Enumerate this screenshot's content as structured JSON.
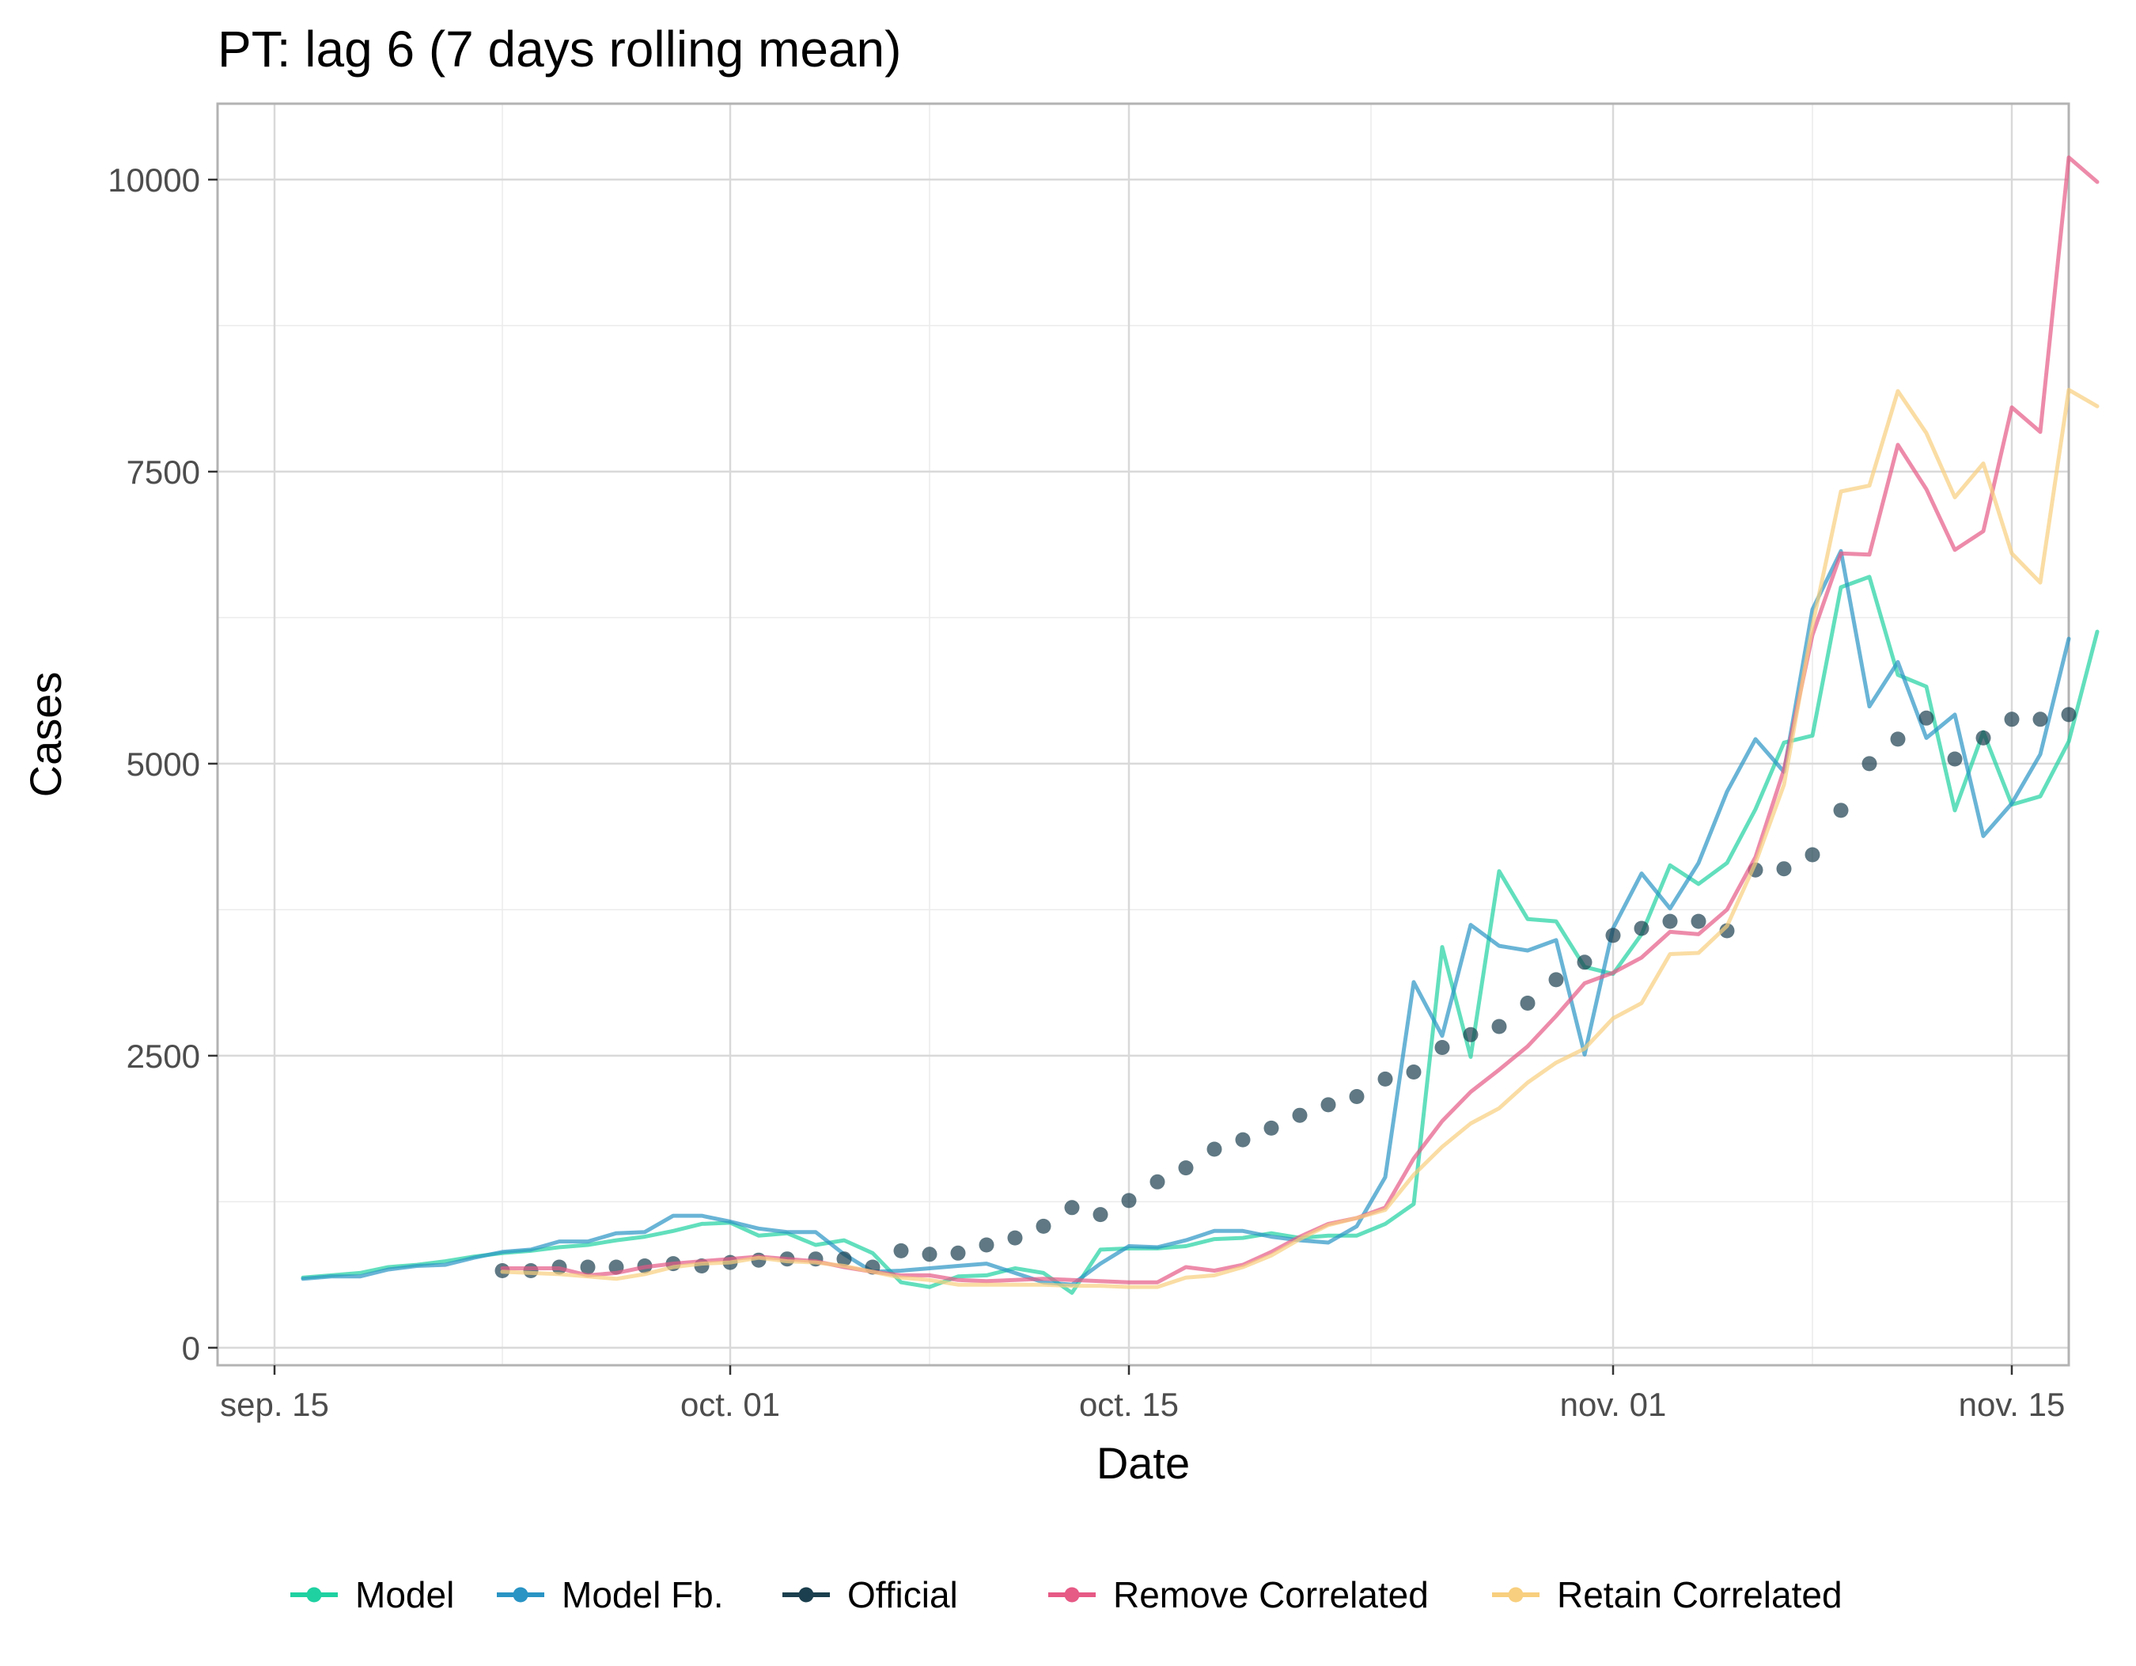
{
  "chart_data": {
    "type": "line",
    "title": "PT: lag 6 (7 days rolling mean)",
    "xlabel": "Date",
    "ylabel": "Cases",
    "x_start": "2020-09-16",
    "x_end": "2020-11-16",
    "xlim": [
      "2020-09-13",
      "2020-11-17"
    ],
    "ylim": [
      -150,
      10650
    ],
    "x_ticks": [
      {
        "date": "2020-09-15",
        "label": "sep. 15"
      },
      {
        "date": "2020-10-01",
        "label": "oct. 01"
      },
      {
        "date": "2020-10-15",
        "label": "oct. 15"
      },
      {
        "date": "2020-11-01",
        "label": "nov. 01"
      },
      {
        "date": "2020-11-15",
        "label": "nov. 15"
      }
    ],
    "y_ticks": [
      0,
      2500,
      5000,
      7500,
      10000
    ],
    "grid": true,
    "legend_position": "bottom",
    "series": [
      {
        "name": "Model",
        "color": "#1fd1a1",
        "style": "line",
        "values": [
          600,
          620,
          640,
          690,
          710,
          740,
          780,
          810,
          830,
          860,
          880,
          920,
          950,
          1000,
          1060,
          1070,
          960,
          980,
          880,
          920,
          810,
          560,
          520,
          610,
          620,
          680,
          640,
          470,
          840,
          850,
          850,
          870,
          930,
          940,
          980,
          940,
          960,
          960,
          1060,
          1230,
          3430,
          2490,
          4080,
          3670,
          3650,
          3260,
          3200,
          3540,
          4130,
          3970,
          4150,
          4610,
          5180,
          5240,
          6510,
          6600,
          5760,
          5660,
          4600,
          5270,
          4650,
          4720,
          5190,
          6130
        ]
      },
      {
        "name": "Model Fb.",
        "color": "#2a94c4",
        "style": "line",
        "values": [
          590,
          610,
          610,
          670,
          700,
          710,
          770,
          820,
          840,
          910,
          910,
          980,
          990,
          1130,
          1130,
          1080,
          1020,
          990,
          990,
          800,
          650,
          660,
          680,
          700,
          720,
          640,
          560,
          540,
          720,
          870,
          860,
          920,
          1000,
          1000,
          950,
          920,
          900,
          1040,
          1460,
          3130,
          2670,
          3620,
          3440,
          3400,
          3490,
          2510,
          3590,
          4060,
          3760,
          4150,
          4760,
          5210,
          4930,
          6320,
          6820,
          5490,
          5870,
          5220,
          5420,
          4380,
          4660,
          5080,
          6070
        ]
      },
      {
        "name": "Official",
        "color": "#1b3f4e",
        "style": "points",
        "start_date": "2020-09-23",
        "values": [
          660,
          660,
          690,
          690,
          690,
          700,
          720,
          700,
          730,
          750,
          760,
          760,
          760,
          690,
          830,
          800,
          810,
          880,
          940,
          1040,
          1200,
          1140,
          1260,
          1420,
          1540,
          1700,
          1780,
          1880,
          1990,
          2080,
          2150,
          2300,
          2360,
          2570,
          2680,
          2750,
          2950,
          3150,
          3300,
          3530,
          3590,
          3650,
          3650,
          3570,
          4090,
          4100,
          4220,
          4600,
          5000,
          5210,
          5390,
          5040,
          5220,
          5380,
          5380,
          5420
        ]
      },
      {
        "name": "Remove Correlated",
        "color": "#e65a86",
        "style": "line",
        "start_date": "2020-09-23",
        "values": [
          680,
          680,
          680,
          620,
          640,
          690,
          720,
          740,
          760,
          780,
          760,
          740,
          690,
          650,
          620,
          620,
          580,
          570,
          580,
          590,
          580,
          570,
          560,
          560,
          690,
          660,
          710,
          820,
          950,
          1060,
          1110,
          1200,
          1620,
          1940,
          2190,
          2380,
          2580,
          2840,
          3120,
          3210,
          3340,
          3560,
          3540,
          3750,
          4200,
          4950,
          6100,
          6800,
          6790,
          7730,
          7350,
          6830,
          6990,
          8050,
          7840,
          10190,
          9980
        ]
      },
      {
        "name": "Retain Correlated",
        "color": "#f8cf7e",
        "style": "line",
        "start_date": "2020-09-23",
        "values": [
          650,
          640,
          630,
          610,
          590,
          630,
          690,
          720,
          730,
          770,
          740,
          730,
          700,
          650,
          600,
          580,
          540,
          540,
          540,
          540,
          530,
          530,
          520,
          520,
          600,
          620,
          690,
          790,
          930,
          1050,
          1110,
          1180,
          1480,
          1720,
          1920,
          2050,
          2270,
          2440,
          2560,
          2820,
          2950,
          3370,
          3380,
          3610,
          4150,
          4820,
          6180,
          7330,
          7380,
          8190,
          7830,
          7280,
          7570,
          6800,
          6550,
          8200,
          8060
        ]
      }
    ]
  }
}
